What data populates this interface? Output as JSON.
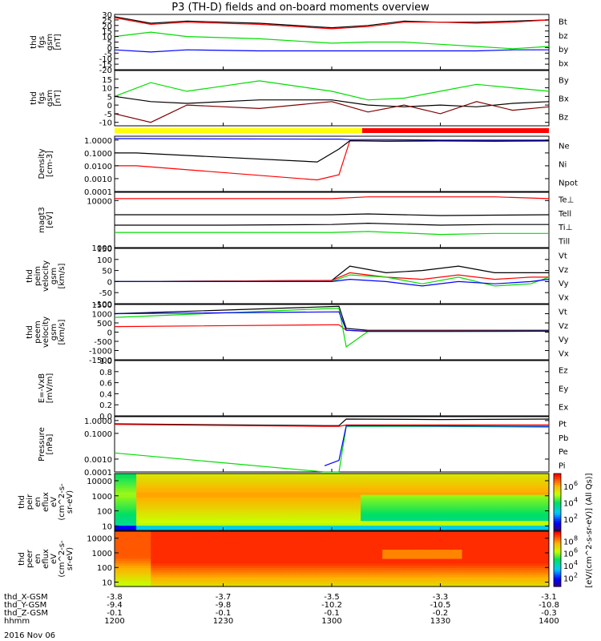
{
  "title": "P3 (TH-D) fields and on-board moments overview",
  "date_label": "2016 Nov 06",
  "time_axis": {
    "ticks": [
      "1200",
      "1230",
      "1300",
      "1330",
      "1400"
    ],
    "rows": [
      {
        "label": "thd_X-GSM",
        "values": [
          "-3.8",
          "-3.7",
          "-3.5",
          "-3.3",
          "-3.1"
        ]
      },
      {
        "label": "thd_Y-GSM",
        "values": [
          "-9.4",
          "-9.8",
          "-10.2",
          "-10.5",
          "-10.8"
        ]
      },
      {
        "label": "thd_Z-GSM",
        "values": [
          "-0.1",
          "-0.1",
          "-0.1",
          "-0.2",
          "-0.3"
        ]
      },
      {
        "label": "hhmm",
        "values": [
          "1200",
          "1230",
          "1300",
          "1330",
          "1400"
        ]
      }
    ]
  },
  "colorbar_label": "[eV/(cm^2-s-sr-eV)] (All Qs)]",
  "colors": {
    "black": "#000000",
    "red": "#ff0000",
    "green": "#00dd00",
    "blue": "#0000ff",
    "yellow": "#ffff00"
  },
  "chart_data": [
    {
      "type": "line",
      "ylabel": [
        "thd",
        "fgs",
        "gsm",
        "[nT]"
      ],
      "ylim": [
        -20,
        30
      ],
      "yticks": [
        "30",
        "25",
        "20",
        "15",
        "10",
        "5",
        "0",
        "-5",
        "-10",
        "-15",
        "-20"
      ],
      "x": [
        "1200",
        "1210",
        "1220",
        "1240",
        "1300",
        "1310",
        "1320",
        "1330",
        "1340",
        "1350",
        "1400"
      ],
      "legend": [
        {
          "name": "Bt",
          "color": "#000000"
        },
        {
          "name": "bz",
          "color": "#ff0000"
        },
        {
          "name": "by",
          "color": "#00dd00"
        },
        {
          "name": "bx",
          "color": "#0000ff"
        }
      ],
      "series": [
        {
          "name": "Bt",
          "values": [
            28,
            22,
            24,
            22,
            18,
            20,
            24,
            23,
            23,
            24,
            25
          ]
        },
        {
          "name": "bz",
          "values": [
            27,
            21,
            23,
            21,
            17,
            19,
            23,
            23,
            22,
            23,
            25
          ]
        },
        {
          "name": "by",
          "values": [
            10,
            14,
            10,
            8,
            4,
            5,
            5,
            3,
            1,
            -1,
            1
          ]
        },
        {
          "name": "bx",
          "values": [
            -2,
            -4,
            -2,
            -3,
            -3,
            -3,
            -3,
            -3,
            -3,
            -2,
            -2
          ]
        }
      ]
    },
    {
      "type": "line",
      "ylabel": [
        "thd",
        "fgs",
        "gsm",
        "[nT]"
      ],
      "ylim": [
        -12,
        20
      ],
      "yticks": [
        "15",
        "10",
        "5",
        "0",
        "-5",
        "-10"
      ],
      "x": [
        "1200",
        "1210",
        "1220",
        "1240",
        "1300",
        "1310",
        "1320",
        "1330",
        "1340",
        "1350",
        "1400"
      ],
      "legend": [
        {
          "name": "By",
          "color": "#00dd00"
        },
        {
          "name": "Bx",
          "color": "#000000"
        },
        {
          "name": "Bz",
          "color": "#800000"
        }
      ],
      "series": [
        {
          "name": "By",
          "values": [
            5,
            13,
            8,
            14,
            8,
            3,
            4,
            8,
            12,
            10,
            8
          ]
        },
        {
          "name": "Bx",
          "values": [
            5,
            2,
            1,
            3,
            3,
            0,
            -1,
            0,
            -1,
            1,
            2
          ]
        },
        {
          "name": "Bz",
          "values": [
            -5,
            -10,
            0,
            -2,
            2,
            -4,
            0,
            -5,
            2,
            -3,
            -1
          ]
        }
      ]
    },
    {
      "type": "line",
      "ylabel": [
        "Density",
        "[cm-3]"
      ],
      "scale": "log",
      "ylim": [
        0.0001,
        2
      ],
      "yticks": [
        "1.0000",
        "0.1000",
        "0.0100",
        "0.0010",
        "0.0001"
      ],
      "x": [
        "1200",
        "1206",
        "1256",
        "1302",
        "1305",
        "1315",
        "1330",
        "1345",
        "1400"
      ],
      "legend": [
        {
          "name": "Ne",
          "color": "#ff0000"
        },
        {
          "name": "Ni",
          "color": "#000000"
        },
        {
          "name": "Npot",
          "color": "#0000ff"
        }
      ],
      "series": [
        {
          "name": "Ne",
          "values": [
            0.01,
            0.01,
            0.0008,
            0.002,
            0.9,
            0.8,
            0.85,
            0.8,
            0.85
          ]
        },
        {
          "name": "Ni",
          "values": [
            0.1,
            0.1,
            0.02,
            0.2,
            0.9,
            0.85,
            0.9,
            0.85,
            0.9
          ]
        },
        {
          "name": "Npot",
          "values": [
            1.3,
            1.3,
            1.2,
            1.2,
            1.1,
            1.1,
            1.0,
            1.0,
            1.0
          ]
        }
      ]
    },
    {
      "type": "line",
      "ylabel": [
        "magt3",
        "[eV]"
      ],
      "scale": "log",
      "ylim": [
        1000,
        15000
      ],
      "yticks": [
        "10000",
        "1000"
      ],
      "x": [
        "1200",
        "1230",
        "1300",
        "1310",
        "1330",
        "1345",
        "1400"
      ],
      "legend": [
        {
          "name": "Te⊥",
          "color": "#ff0000"
        },
        {
          "name": "Tell",
          "color": "#000000"
        },
        {
          "name": "Ti⊥",
          "color": "#000000"
        },
        {
          "name": "Till",
          "color": "#00dd00"
        }
      ],
      "series": [
        {
          "name": "Te⊥",
          "values": [
            11000,
            11000,
            11000,
            12000,
            12000,
            12000,
            11000
          ]
        },
        {
          "name": "Tell",
          "values": [
            5000,
            5000,
            5000,
            5200,
            4800,
            4900,
            5000
          ]
        },
        {
          "name": "Ti⊥",
          "values": [
            3000,
            3000,
            3100,
            3300,
            3000,
            3100,
            3100
          ]
        },
        {
          "name": "Till",
          "values": [
            2100,
            2100,
            2100,
            2200,
            1900,
            2000,
            2000
          ]
        }
      ]
    },
    {
      "type": "line",
      "ylabel": [
        "thd",
        "peim",
        "velocity",
        "gsm",
        "[km/s]"
      ],
      "ylim": [
        -100,
        150
      ],
      "yticks": [
        "150",
        "100",
        "50",
        "0",
        "-50",
        "-100"
      ],
      "x": [
        "1200",
        "1300",
        "1305",
        "1315",
        "1325",
        "1335",
        "1345",
        "1355",
        "1400"
      ],
      "legend": [
        {
          "name": "Vt",
          "color": "#000000"
        },
        {
          "name": "Vz",
          "color": "#ff0000"
        },
        {
          "name": "Vy",
          "color": "#00dd00"
        },
        {
          "name": "Vx",
          "color": "#0000ff"
        }
      ],
      "series": [
        {
          "name": "Vt",
          "values": [
            0,
            5,
            70,
            40,
            50,
            70,
            40,
            40,
            40
          ]
        },
        {
          "name": "Vz",
          "values": [
            0,
            5,
            40,
            20,
            10,
            30,
            10,
            20,
            20
          ]
        },
        {
          "name": "Vy",
          "values": [
            0,
            0,
            30,
            20,
            -10,
            20,
            -20,
            -10,
            20
          ]
        },
        {
          "name": "Vx",
          "values": [
            0,
            0,
            10,
            0,
            -20,
            0,
            -10,
            0,
            10
          ]
        }
      ]
    },
    {
      "type": "line",
      "ylabel": [
        "thd",
        "peem",
        "velocity",
        "gsm",
        "[km/s]"
      ],
      "ylim": [
        -1500,
        1500
      ],
      "yticks": [
        "1500",
        "1000",
        "500",
        "0",
        "-500",
        "-1000",
        "-1500"
      ],
      "x": [
        "1200",
        "1302",
        "1304",
        "1310",
        "1330",
        "1400"
      ],
      "legend": [
        {
          "name": "Vt",
          "color": "#000000"
        },
        {
          "name": "Vz",
          "color": "#ff0000"
        },
        {
          "name": "Vy",
          "color": "#00dd00"
        },
        {
          "name": "Vx",
          "color": "#0000ff"
        }
      ],
      "series": [
        {
          "name": "Vt",
          "values": [
            1000,
            1400,
            200,
            100,
            100,
            100
          ]
        },
        {
          "name": "Vz",
          "values": [
            300,
            400,
            100,
            50,
            50,
            60
          ]
        },
        {
          "name": "Vy",
          "values": [
            800,
            1300,
            -800,
            40,
            40,
            50
          ]
        },
        {
          "name": "Vx",
          "values": [
            1000,
            1100,
            100,
            40,
            40,
            50
          ]
        }
      ]
    },
    {
      "type": "line",
      "ylabel": [
        "E=-VxB",
        "[mV/m]"
      ],
      "ylim": [
        0,
        1
      ],
      "yticks": [
        "1.0",
        "0.8",
        "0.6",
        "0.4",
        "0.2",
        "0.0"
      ],
      "x": [],
      "legend": [
        {
          "name": "Ez",
          "color": "#ff0000"
        },
        {
          "name": "Ey",
          "color": "#00dd00"
        },
        {
          "name": "Ex",
          "color": "#0000ff"
        }
      ],
      "series": []
    },
    {
      "type": "line",
      "ylabel": [
        "Pressure",
        "[nPa]"
      ],
      "scale": "log",
      "ylim": [
        0.0001,
        2
      ],
      "yticks": [
        "1.0000",
        "0.1000",
        "0.0010",
        "0.0001"
      ],
      "x": [
        "1200",
        "1258",
        "1302",
        "1304",
        "1330",
        "1400"
      ],
      "legend": [
        {
          "name": "Pt",
          "color": "#000000"
        },
        {
          "name": "Pb",
          "color": "#ff0000"
        },
        {
          "name": "Pe",
          "color": "#00dd00"
        },
        {
          "name": "Pi",
          "color": "#0000ff"
        }
      ],
      "series": [
        {
          "name": "Pt",
          "values": [
            0.55,
            0.4,
            0.4,
            1.3,
            1.2,
            1.3
          ]
        },
        {
          "name": "Pb",
          "values": [
            0.5,
            0.35,
            0.35,
            0.45,
            0.45,
            0.45
          ]
        },
        {
          "name": "Pe",
          "values": [
            0.003,
            0.0001,
            0.0001,
            0.35,
            0.35,
            0.3
          ]
        },
        {
          "name": "Pi",
          "values": [
            null,
            0.0003,
            0.0008,
            0.4,
            0.38,
            0.35
          ]
        }
      ]
    },
    {
      "type": "heatmap",
      "ylabel": [
        "thd",
        "peir",
        "en",
        "eflux",
        "eV",
        "(cm^2-s-",
        "sr-eV)"
      ],
      "scale": "log",
      "ylim": [
        5,
        30000
      ],
      "yticks": [
        "10000",
        "1000",
        "100",
        "10"
      ],
      "colorbar_ticks": [
        "10^6",
        "10^4",
        "10^2"
      ]
    },
    {
      "type": "heatmap",
      "ylabel": [
        "thd",
        "peer",
        "en",
        "eflux",
        "eV",
        "(cm^2-s-",
        "sr-eV)"
      ],
      "scale": "log",
      "ylim": [
        5,
        30000
      ],
      "yticks": [
        "10000",
        "1000",
        "100",
        "10"
      ],
      "colorbar_ticks": [
        "10^8",
        "10^6",
        "10^4",
        "10^2"
      ]
    }
  ]
}
